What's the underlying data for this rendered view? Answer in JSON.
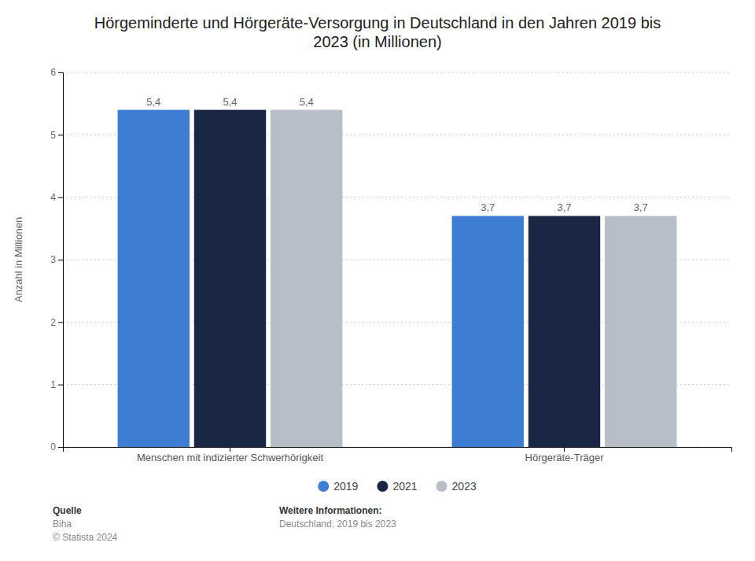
{
  "chart_data": {
    "type": "bar",
    "title": "Hörgeminderte und Hörgeräte-Versorgung in Deutschland in den Jahren 2019 bis\n2023 (in Millionen)",
    "ylabel": "Anzahl in Millionen",
    "categories": [
      "Menschen mit indizierter Schwerhörigkeit",
      "Hörgeräte-Träger"
    ],
    "series": [
      {
        "name": "2019",
        "color": "#3d7ed4",
        "values": [
          5.4,
          3.7
        ],
        "value_labels": [
          "5,4",
          "3,7"
        ]
      },
      {
        "name": "2021",
        "color": "#1a2744",
        "values": [
          5.4,
          3.7
        ],
        "value_labels": [
          "5,4",
          "3,7"
        ]
      },
      {
        "name": "2023",
        "color": "#b8bec8",
        "values": [
          5.4,
          3.7
        ],
        "value_labels": [
          "5,4",
          "3,7"
        ]
      }
    ],
    "ylim": [
      0,
      6
    ],
    "yticks": [
      0,
      1,
      2,
      3,
      4,
      5,
      6
    ],
    "grid": true,
    "data_labels": true,
    "legend": "bottom",
    "annotations": [
      "Quelle",
      "Biha\n© Statista 2024",
      "Weitere Informationen:",
      "Deutschland; 2019 bis 2023"
    ]
  }
}
